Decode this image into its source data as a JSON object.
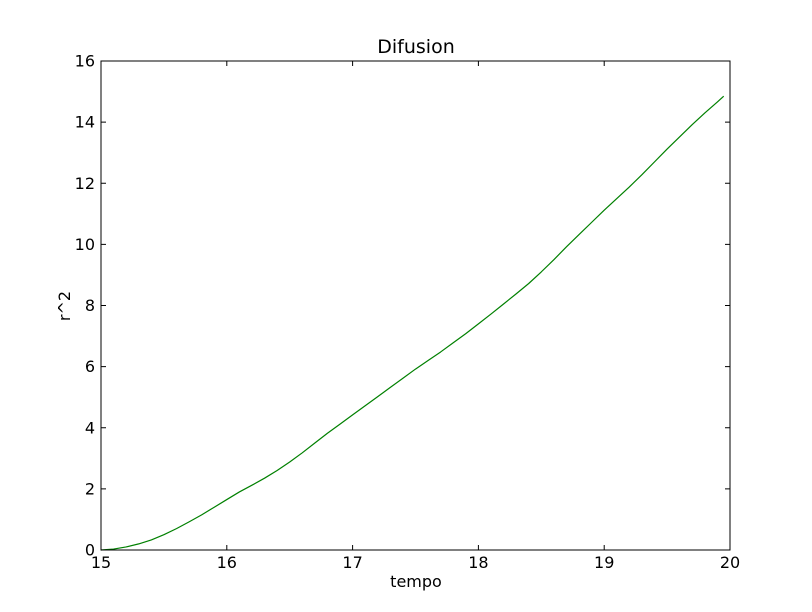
{
  "chart_data": {
    "type": "line",
    "title": "Difusion",
    "xlabel": "tempo",
    "ylabel": "r^2",
    "xlim": [
      15,
      20
    ],
    "ylim": [
      0,
      16
    ],
    "xticks": [
      15,
      16,
      17,
      18,
      19,
      20
    ],
    "yticks": [
      0,
      2,
      4,
      6,
      8,
      10,
      12,
      14,
      16
    ],
    "grid": false,
    "series": [
      {
        "color": "#008000",
        "x": [
          15.0,
          15.1,
          15.2,
          15.3,
          15.4,
          15.5,
          15.6,
          15.7,
          15.8,
          15.9,
          16.0,
          16.1,
          16.2,
          16.3,
          16.4,
          16.5,
          16.6,
          16.7,
          16.8,
          16.9,
          17.0,
          17.1,
          17.2,
          17.3,
          17.4,
          17.5,
          17.6,
          17.7,
          17.8,
          17.9,
          18.0,
          18.1,
          18.2,
          18.3,
          18.4,
          18.5,
          18.6,
          18.7,
          18.8,
          18.9,
          19.0,
          19.1,
          19.2,
          19.3,
          19.4,
          19.5,
          19.6,
          19.7,
          19.8,
          19.9,
          19.95
        ],
        "y": [
          0.0,
          0.03,
          0.1,
          0.2,
          0.33,
          0.5,
          0.7,
          0.92,
          1.15,
          1.4,
          1.65,
          1.9,
          2.12,
          2.35,
          2.6,
          2.88,
          3.18,
          3.5,
          3.82,
          4.12,
          4.42,
          4.72,
          5.02,
          5.32,
          5.62,
          5.92,
          6.2,
          6.48,
          6.78,
          7.08,
          7.4,
          7.72,
          8.05,
          8.38,
          8.72,
          9.1,
          9.5,
          9.92,
          10.32,
          10.72,
          11.12,
          11.5,
          11.88,
          12.28,
          12.7,
          13.12,
          13.52,
          13.92,
          14.3,
          14.66,
          14.85
        ]
      }
    ]
  }
}
